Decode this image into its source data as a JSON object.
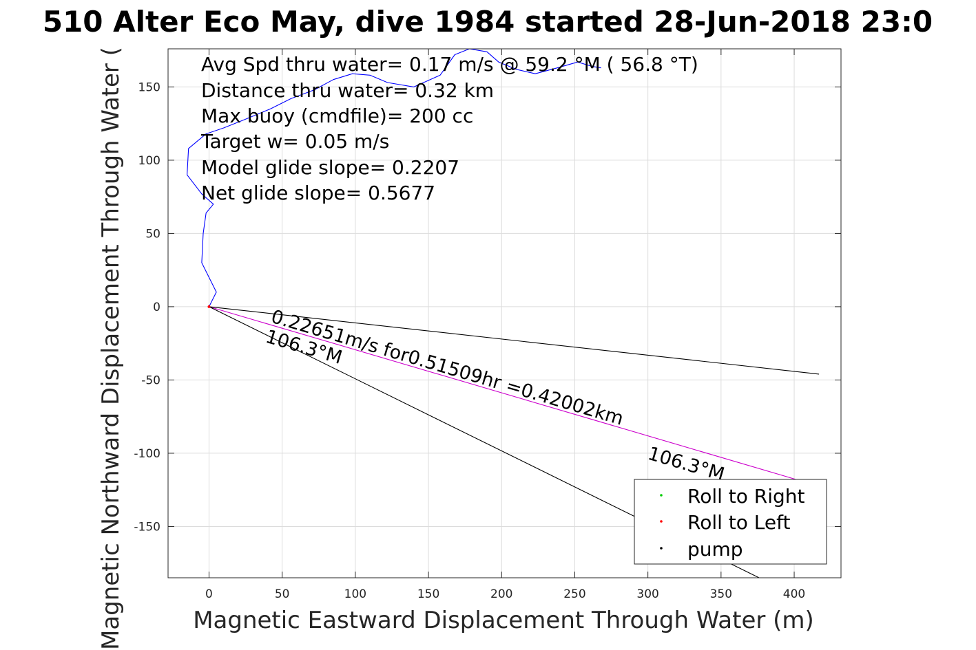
{
  "chart_data": {
    "type": "line",
    "title": "510 Alter Eco May, dive 1984 started 28-Jun-2018 23:0",
    "xlabel": "Magnetic Eastward Displacement Through Water (m)",
    "ylabel": "Magnetic Northward Displacement Through Water (",
    "xlim": [
      -28,
      432
    ],
    "ylim": [
      -185,
      176
    ],
    "xticks": [
      0,
      50,
      100,
      150,
      200,
      250,
      300,
      350,
      400
    ],
    "yticks": [
      -150,
      -100,
      -50,
      0,
      50,
      100,
      150
    ],
    "grid": true,
    "info_lines": [
      "Avg Spd thru water=  0.17 m/s @  59.2 °M ( 56.8 °T)",
      "Distance thru water=  0.32 km",
      "Max buoy (cmdfile)= 200 cc",
      "Target w= 0.05 m/s",
      "Model glide slope= 0.2207",
      "Net glide slope= 0.5677"
    ],
    "annotations": {
      "current_text": "0.22651m/s for0.51509hr =0.42002km",
      "heading_upper": "106.3°M",
      "heading_lower": "106.3°M"
    },
    "legend": {
      "position": "bottom-right",
      "entries": [
        {
          "label": "Roll to Right",
          "color": "#00cc00"
        },
        {
          "label": "Roll to Left",
          "color": "#ff0000"
        },
        {
          "label": "pump",
          "color": "#000000"
        }
      ]
    },
    "series": [
      {
        "color": "#0000ff",
        "x": [
          0,
          5,
          -5,
          -4,
          -2,
          3,
          -5,
          -15,
          -14,
          -2,
          10,
          25,
          42,
          56,
          72,
          85,
          98,
          110,
          122,
          140,
          158,
          168,
          178,
          190,
          198,
          210,
          223,
          238,
          252,
          262,
          268
        ],
        "y": [
          0,
          10,
          30,
          50,
          64,
          70,
          77,
          90,
          108,
          118,
          122,
          128,
          135,
          142,
          148,
          155,
          159,
          158,
          153,
          150,
          158,
          172,
          176,
          174,
          167,
          162,
          159,
          163,
          167,
          164,
          163
        ]
      },
      {
        "color": "#cc00cc",
        "x": [
          0,
          405
        ],
        "y": [
          0,
          -119
        ]
      },
      {
        "color": "#000000",
        "x": [
          0,
          417
        ],
        "y": [
          0,
          -46
        ]
      },
      {
        "color": "#000000",
        "x": [
          0,
          376
        ],
        "y": [
          0,
          -185
        ]
      }
    ]
  }
}
